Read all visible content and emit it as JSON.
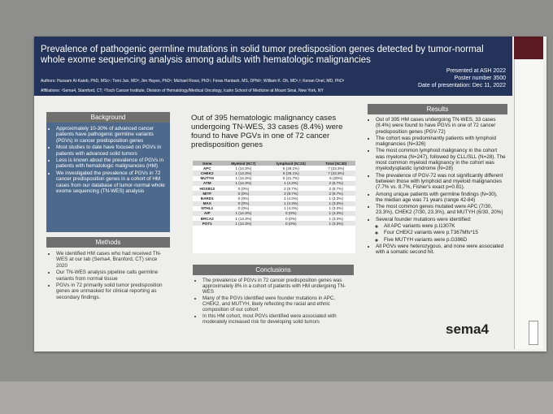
{
  "header": {
    "title": "Prevalence of pathogenic germline mutations in solid tumor predisposition genes detected by tumor-normal whole exome sequencing analysis among adults with hematologic malignancies",
    "authors": "Authors: Hussam Al-Kateb, PhD, MSc¹; Tomi Jun, MD²; Jim Hayes, PhD¹; Michael Rossi, PhD¹; Feras Hantash, MS, DPhil¹; William K. Oh, MD¹,²; Kenan Onel, MD, PhD¹",
    "affiliations": "Affiliations: ¹Sema4, Stamford, CT; ²Tisch Cancer Institute, Division of Hematology/Medical Oncology, Icahn School of Medicine at Mount Sinai, New York, NY",
    "presented": "Presented at ASH 2022",
    "poster_number": "Poster number 3500",
    "date": "Date of presentation: Dec 11, 2022"
  },
  "background": {
    "title": "Background",
    "items": [
      "Approximately 10-30% of advanced cancer patients have pathogenic germline variants (PGVs) in cancer predisposition genes",
      "Most studies to date have focused on PGVs in patients with advanced solid tumors",
      "Less is known about the prevalence of PGVs in patients with hematologic malignancies (HM)",
      "We investigated the prevalence of PGVs in 72 cancer predisposition genes in a cohort of HM cases from our database of tumor-normal whole exome sequencing (TN-WES) analysis"
    ]
  },
  "methods": {
    "title": "Methods",
    "items": [
      "We identified HM cases who had received TN-WES at our lab (Sema4, Branford, CT) since 2020",
      "Our TN-WES analysis pipeline calls germline variants from normal tissue",
      "PGVs in 72 primarily solid tumor predisposition genes are unmasked for clinical reporting as secondary findings."
    ]
  },
  "summary": "Out of 395 hematologic malignancy cases undergoing TN-WES, 33 cases (8.4%) were found to have PGVs in one of 72 cancer predisposition genes",
  "table": {
    "columns": [
      "Gene",
      "Myeloid (N=7)",
      "lymphoid (N=23)",
      "Total (N=30)"
    ],
    "rows": [
      [
        "APC",
        "1 (14.3%)",
        "6 (26.1%)",
        "7 (23.3%)"
      ],
      [
        "CHEK2",
        "1 (14.3%)",
        "6 (26.1%)",
        "7 (23.3%)"
      ],
      [
        "MUTYH",
        "1 (14.3%)",
        "5 (21.7%)",
        "6 (20%)"
      ],
      [
        "ATM",
        "1 (14.3%)",
        "1 (4.3%)",
        "2 (6.7%)"
      ],
      [
        "HOXB13",
        "0 (0%)",
        "2 (8.7%)",
        "2 (6.7%)"
      ],
      [
        "MITF",
        "0 (0%)",
        "2 (8.7%)",
        "2 (6.7%)"
      ],
      [
        "BARD1",
        "0 (0%)",
        "1 (4.3%)",
        "1 (3.3%)"
      ],
      [
        "MAX",
        "0 (0%)",
        "1 (4.3%)",
        "1 (3.3%)"
      ],
      [
        "NTHL1",
        "0 (0%)",
        "1 (4.3%)",
        "1 (3.3%)"
      ],
      [
        "AIP",
        "1 (14.3%)",
        "0 (0%)",
        "1 (3.3%)"
      ],
      [
        "BRCA2",
        "1 (14.3%)",
        "0 (0%)",
        "1 (3.3%)"
      ],
      [
        "POT1",
        "1 (14.3%)",
        "0 (0%)",
        "1 (3.3%)"
      ]
    ]
  },
  "conclusions": {
    "title": "Conclusions",
    "items": [
      "The prevalence of PGVs in 72 cancer predisposition genes was approximately 8% in a cohort of patients with HM undergoing TN-WES",
      "Many of the PGVs identified were founder mutations in APC, CHEK2, and MUTYH, likely reflecting the racial and ethnic composition of our cohort",
      "In this HM cohort, most PGVs identified were associated with moderately increased risk for developing solid tumors"
    ]
  },
  "results": {
    "title": "Results",
    "items": [
      "Out of 395 HM cases undergoing TN-WES, 33 cases (8.4%) were found to have PGVs in one of 72 cancer predisposition genes (PGV-72)",
      "The cohort was predominantly patients with lymphoid malignancies (N=326)",
      "The most common lymphoid malignancy in the cohort was myeloma (N=247), followed by CLL/SLL (N=28). The most common myeloid malignancy in the cohort was myelodysplastic syndrome (N=28)",
      "The prevalence of PGV-72 was not significantly different between those with lymphoid and myeloid malignancies (7.7% vs. 8.7%, Fisher's exact p=0.81).",
      "Among unique patients with germline findings (N=30), the median age was 71 years (range 42-84)",
      "The most common genes mutated were APC (7/30, 23.3%), CHEK2 (7/30, 23.3%), and MUTYH (6/30, 20%)",
      "Several founder mutations were identified:"
    ],
    "subitems": [
      "All APC variants were p.I1307K",
      "Four CHEK2 variants were p.T367Mfs*15",
      "Five MUTYH variants were p.G396D"
    ],
    "final": "All PGVs were heterozygous, and none were associated with a somatic second hit."
  },
  "logo": "sema4"
}
